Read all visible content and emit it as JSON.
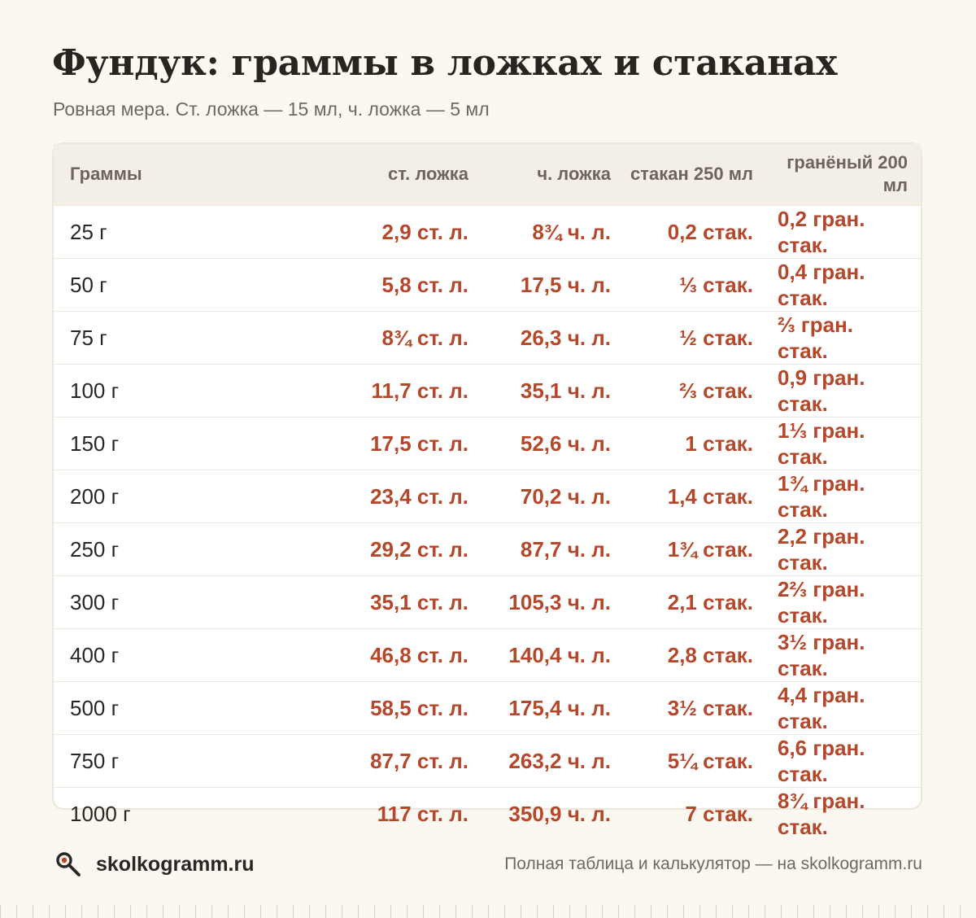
{
  "title": "Фундук: граммы в ложках и стаканах",
  "subtitle": "Ровная мера. Ст. ложка — 15 мл, ч. ложка — 5 мл",
  "table": {
    "headers": [
      "Граммы",
      "ст. ложка",
      "ч. ложка",
      "стакан 250 мл",
      "гранёный 200 мл"
    ],
    "rows": [
      [
        "25 г",
        "2,9 ст. л.",
        "8¾ ч. л.",
        "0,2 стак.",
        "0,2 гран. стак."
      ],
      [
        "50 г",
        "5,8 ст. л.",
        "17,5 ч. л.",
        "⅓ стак.",
        "0,4 гран. стак."
      ],
      [
        "75 г",
        "8¾ ст. л.",
        "26,3 ч. л.",
        "½ стак.",
        "⅔ гран. стак."
      ],
      [
        "100 г",
        "11,7 ст. л.",
        "35,1 ч. л.",
        "⅔ стак.",
        "0,9 гран. стак."
      ],
      [
        "150 г",
        "17,5 ст. л.",
        "52,6 ч. л.",
        "1 стак.",
        "1⅓ гран. стак."
      ],
      [
        "200 г",
        "23,4 ст. л.",
        "70,2 ч. л.",
        "1,4 стак.",
        "1¾ гран. стак."
      ],
      [
        "250 г",
        "29,2 ст. л.",
        "87,7 ч. л.",
        "1¾ стак.",
        "2,2 гран. стак."
      ],
      [
        "300 г",
        "35,1 ст. л.",
        "105,3 ч. л.",
        "2,1 стак.",
        "2⅔ гран. стак."
      ],
      [
        "400 г",
        "46,8 ст. л.",
        "140,4 ч. л.",
        "2,8 стак.",
        "3½ гран. стак."
      ],
      [
        "500 г",
        "58,5 ст. л.",
        "175,4 ч. л.",
        "3½ стак.",
        "4,4 гран. стак."
      ],
      [
        "750 г",
        "87,7 ст. л.",
        "263,2 ч. л.",
        "5¼ стак.",
        "6,6 гран. стак."
      ],
      [
        "1000 г",
        "117 ст. л.",
        "350,9 ч. л.",
        "7 стак.",
        "8¾ гран. стак."
      ]
    ]
  },
  "footer": {
    "brand": "skolkogramm.ru",
    "brand_icon": "magnifier-icon",
    "note": "Полная таблица и калькулятор — на skolkogramm.ru"
  },
  "colors": {
    "background": "#fbf8f1",
    "accent": "#b5472a",
    "header_bg": "#f4efe6",
    "text": "#2a2623",
    "muted": "#6f6861"
  }
}
